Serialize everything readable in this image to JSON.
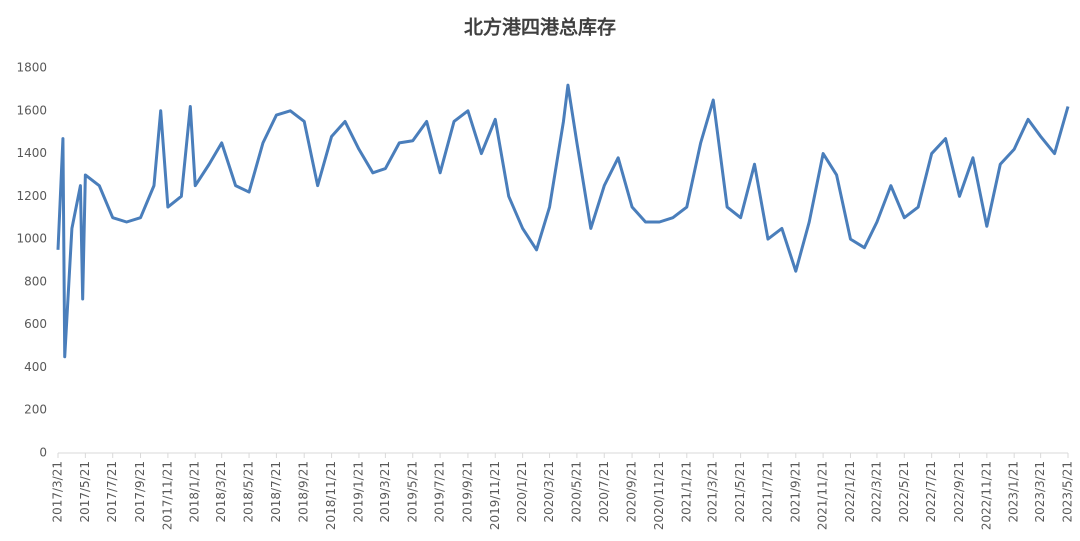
{
  "chart_data": {
    "type": "line",
    "title": "北方港四港总库存",
    "x": [
      "2017/3/21",
      "2017/4/1",
      "2017/4/5",
      "2017/4/21",
      "2017/5/10",
      "2017/5/15",
      "2017/5/21",
      "2017/6/21",
      "2017/7/21",
      "2017/8/21",
      "2017/9/21",
      "2017/10/21",
      "2017/11/5",
      "2017/11/21",
      "2017/12/21",
      "2018/1/10",
      "2018/1/21",
      "2018/2/21",
      "2018/3/21",
      "2018/4/21",
      "2018/5/21",
      "2018/6/21",
      "2018/7/21",
      "2018/8/21",
      "2018/9/21",
      "2018/10/21",
      "2018/11/21",
      "2018/12/21",
      "2019/1/21",
      "2019/2/21",
      "2019/3/21",
      "2019/4/21",
      "2019/5/21",
      "2019/6/21",
      "2019/7/21",
      "2019/8/21",
      "2019/9/21",
      "2019/10/21",
      "2019/11/21",
      "2019/12/21",
      "2020/1/21",
      "2020/2/21",
      "2020/3/21",
      "2020/4/21",
      "2020/5/1",
      "2020/5/21",
      "2020/6/21",
      "2020/7/21",
      "2020/8/21",
      "2020/9/21",
      "2020/10/21",
      "2020/11/21",
      "2020/12/21",
      "2021/1/21",
      "2021/2/21",
      "2021/3/21",
      "2021/4/21",
      "2021/5/21",
      "2021/6/21",
      "2021/7/21",
      "2021/8/21",
      "2021/9/21",
      "2021/10/21",
      "2021/11/21",
      "2021/12/21",
      "2022/1/21",
      "2022/2/21",
      "2022/3/21",
      "2022/4/21",
      "2022/5/21",
      "2022/6/21",
      "2022/7/21",
      "2022/8/21",
      "2022/9/21",
      "2022/10/21",
      "2022/11/21",
      "2022/12/21",
      "2023/1/21",
      "2023/2/21",
      "2023/3/21",
      "2023/4/21",
      "2023/5/21"
    ],
    "series": [
      {
        "name": "北方港四港总库存",
        "color": "#4a7ebb",
        "values": [
          950,
          1470,
          450,
          1050,
          1250,
          720,
          1300,
          1250,
          1100,
          1080,
          1100,
          1250,
          1600,
          1150,
          1200,
          1620,
          1250,
          1350,
          1450,
          1250,
          1220,
          1450,
          1580,
          1600,
          1550,
          1250,
          1480,
          1550,
          1420,
          1310,
          1330,
          1450,
          1460,
          1550,
          1310,
          1550,
          1600,
          1400,
          1560,
          1200,
          1050,
          950,
          1150,
          1550,
          1720,
          1450,
          1050,
          1250,
          1380,
          1150,
          1080,
          1080,
          1100,
          1150,
          1450,
          1650,
          1150,
          1100,
          1350,
          1000,
          1050,
          850,
          1080,
          1400,
          1300,
          1000,
          960,
          1080,
          1250,
          1100,
          1150,
          1400,
          1470,
          1200,
          1380,
          1060,
          1350,
          1420,
          1560,
          1480,
          1400,
          1620
        ]
      }
    ],
    "xlim": [
      "2017/3/21",
      "2023/5/21"
    ],
    "xticks": [
      "2017/3/21",
      "2017/5/21",
      "2017/7/21",
      "2017/9/21",
      "2017/11/21",
      "2018/1/21",
      "2018/3/21",
      "2018/5/21",
      "2018/7/21",
      "2018/9/21",
      "2018/11/21",
      "2019/1/21",
      "2019/3/21",
      "2019/5/21",
      "2019/7/21",
      "2019/9/21",
      "2019/11/21",
      "2020/1/21",
      "2020/3/21",
      "2020/5/21",
      "2020/7/21",
      "2020/9/21",
      "2020/11/21",
      "2021/1/21",
      "2021/3/21",
      "2021/5/21",
      "2021/7/21",
      "2021/9/21",
      "2021/11/21",
      "2022/1/21",
      "2022/3/21",
      "2022/5/21",
      "2022/7/21",
      "2022/9/21",
      "2022/11/21",
      "2023/1/21",
      "2023/3/21",
      "2023/5/21"
    ],
    "ylim": [
      0,
      1800
    ],
    "yticks": [
      0,
      200,
      400,
      600,
      800,
      1000,
      1200,
      1400,
      1600,
      1800
    ],
    "grid": false
  }
}
